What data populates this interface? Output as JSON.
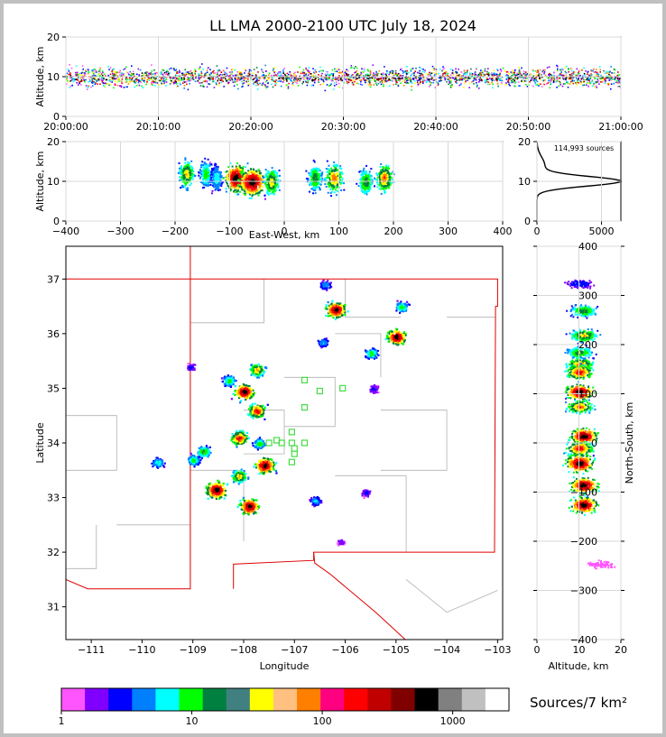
{
  "chart_data": [
    {
      "type": "heatmap",
      "panel": "time-altitude",
      "title": "LL LMA 2000-2100 UTC July 18, 2024",
      "xlabel": "",
      "ylabel": "Altitude, km",
      "x_ticks": [
        "20:00:00",
        "20:10:00",
        "20:20:00",
        "20:30:00",
        "20:40:00",
        "20:50:00",
        "21:00:00"
      ],
      "y_ticks": [
        "0",
        "10",
        "20"
      ],
      "ylim": [
        0,
        20
      ],
      "band_center_km": 10,
      "grid": true
    },
    {
      "type": "heatmap",
      "panel": "east-west-altitude",
      "xlabel": "East-West, km",
      "ylabel": "Altitude, km",
      "x_ticks": [
        "−400",
        "−300",
        "−200",
        "−100",
        "0",
        "100",
        "200",
        "300",
        "400"
      ],
      "y_ticks": [
        "0",
        "10",
        "20"
      ],
      "xlim": [
        -400,
        400
      ],
      "ylim": [
        0,
        20
      ],
      "clusters": [
        {
          "x": -180,
          "alt": 12,
          "intensity": 8
        },
        {
          "x": -145,
          "alt": 12,
          "intensity": 6
        },
        {
          "x": -125,
          "alt": 11,
          "intensity": 5
        },
        {
          "x": -90,
          "alt": 11,
          "intensity": 14
        },
        {
          "x": -60,
          "alt": 10,
          "intensity": 18
        },
        {
          "x": -25,
          "alt": 10,
          "intensity": 8
        },
        {
          "x": 55,
          "alt": 11,
          "intensity": 7
        },
        {
          "x": 90,
          "alt": 11,
          "intensity": 9
        },
        {
          "x": 148,
          "alt": 10,
          "intensity": 7
        },
        {
          "x": 182,
          "alt": 11,
          "intensity": 9
        }
      ],
      "grid": true
    },
    {
      "type": "line",
      "panel": "altitude-histogram",
      "annotation": "114,993 sources",
      "x_ticks": [
        "0",
        "5000"
      ],
      "y_ticks": [
        "0",
        "10",
        "20"
      ],
      "xlim": [
        0,
        6500
      ],
      "ylim": [
        0,
        20
      ],
      "peak_count": 6400,
      "peak_altitude_km": 10,
      "grid": true
    },
    {
      "type": "heatmap",
      "panel": "plan-view-map",
      "xlabel": "Longitude",
      "ylabel": "Latitude",
      "x_ticks": [
        "−111",
        "−110",
        "−109",
        "−108",
        "−107",
        "−106",
        "−105",
        "−104",
        "−103"
      ],
      "y_ticks": [
        "31",
        "32",
        "33",
        "34",
        "35",
        "36",
        "37"
      ],
      "xlim": [
        -111.5,
        -102.9
      ],
      "ylim": [
        30.4,
        37.6
      ],
      "storm_cells": [
        {
          "lon": -109.7,
          "lat": 33.65,
          "intensity": 6
        },
        {
          "lon": -109.0,
          "lat": 33.7,
          "intensity": 7
        },
        {
          "lon": -108.8,
          "lat": 33.85,
          "intensity": 8
        },
        {
          "lon": -108.55,
          "lat": 33.15,
          "intensity": 16
        },
        {
          "lon": -108.1,
          "lat": 33.4,
          "intensity": 10
        },
        {
          "lon": -107.9,
          "lat": 32.85,
          "intensity": 14
        },
        {
          "lon": -108.1,
          "lat": 34.1,
          "intensity": 12
        },
        {
          "lon": -107.6,
          "lat": 33.6,
          "intensity": 14
        },
        {
          "lon": -107.7,
          "lat": 34.0,
          "intensity": 7
        },
        {
          "lon": -108.0,
          "lat": 34.95,
          "intensity": 14
        },
        {
          "lon": -107.75,
          "lat": 34.6,
          "intensity": 12
        },
        {
          "lon": -108.3,
          "lat": 35.15,
          "intensity": 7
        },
        {
          "lon": -107.75,
          "lat": 35.35,
          "intensity": 10
        },
        {
          "lon": -106.6,
          "lat": 32.95,
          "intensity": 5
        },
        {
          "lon": -106.2,
          "lat": 36.45,
          "intensity": 14
        },
        {
          "lon": -106.4,
          "lat": 36.9,
          "intensity": 5
        },
        {
          "lon": -106.45,
          "lat": 35.85,
          "intensity": 5
        },
        {
          "lon": -105.0,
          "lat": 35.95,
          "intensity": 14
        },
        {
          "lon": -104.9,
          "lat": 36.5,
          "intensity": 7
        },
        {
          "lon": -105.5,
          "lat": 35.65,
          "intensity": 7
        },
        {
          "lon": -105.45,
          "lat": 35.0,
          "intensity": 3
        },
        {
          "lon": -109.05,
          "lat": 35.4,
          "intensity": 3
        },
        {
          "lon": -105.6,
          "lat": 33.1,
          "intensity": 3
        },
        {
          "lon": -106.1,
          "lat": 32.2,
          "intensity": 2
        }
      ],
      "stations": [
        [
          -106.8,
          35.15
        ],
        [
          -106.5,
          34.95
        ],
        [
          -106.05,
          35.0
        ],
        [
          -106.8,
          34.65
        ],
        [
          -107.05,
          34.2
        ],
        [
          -107.35,
          34.05
        ],
        [
          -107.05,
          34.0
        ],
        [
          -106.8,
          34.0
        ],
        [
          -107.5,
          34.0
        ],
        [
          -107.25,
          34.0
        ],
        [
          -107.0,
          33.9
        ],
        [
          -107.0,
          33.8
        ],
        [
          -107.05,
          33.65
        ]
      ],
      "grid": false
    },
    {
      "type": "heatmap",
      "panel": "altitude-north-south",
      "xlabel": "Altitude, km",
      "ylabel": "North-South, km",
      "x_ticks": [
        "0",
        "10",
        "20"
      ],
      "y_ticks": [
        "−400",
        "−300",
        "−200",
        "−100",
        "0",
        "100",
        "200",
        "300",
        "400"
      ],
      "xlim": [
        0,
        20
      ],
      "ylim": [
        -400,
        400
      ],
      "clusters": [
        {
          "y": 325,
          "alt": 10,
          "intensity": 3
        },
        {
          "y": 270,
          "alt": 11,
          "intensity": 7
        },
        {
          "y": 220,
          "alt": 11,
          "intensity": 8
        },
        {
          "y": 185,
          "alt": 10,
          "intensity": 7
        },
        {
          "y": 160,
          "alt": 10,
          "intensity": 9
        },
        {
          "y": 145,
          "alt": 10,
          "intensity": 10
        },
        {
          "y": 105,
          "alt": 10,
          "intensity": 12
        },
        {
          "y": 75,
          "alt": 10,
          "intensity": 9
        },
        {
          "y": 15,
          "alt": 11,
          "intensity": 12
        },
        {
          "y": -10,
          "alt": 10,
          "intensity": 10
        },
        {
          "y": -40,
          "alt": 10,
          "intensity": 14
        },
        {
          "y": -85,
          "alt": 11,
          "intensity": 12
        },
        {
          "y": -125,
          "alt": 11,
          "intensity": 12
        },
        {
          "y": -245,
          "alt": 15,
          "intensity": 1
        }
      ],
      "grid": true
    }
  ],
  "colorbar": {
    "label": "Sources/7 km²",
    "ticks": [
      "1",
      "10",
      "100",
      "1000"
    ],
    "colors": [
      "#ff55ff",
      "#8000ff",
      "#0000ff",
      "#0080ff",
      "#00ffff",
      "#00ff00",
      "#008040",
      "#408080",
      "#ffff00",
      "#ffc080",
      "#ff8000",
      "#ff0080",
      "#ff0000",
      "#c00000",
      "#800000",
      "#000000",
      "#808080",
      "#c0c0c0",
      "#ffffff"
    ]
  }
}
